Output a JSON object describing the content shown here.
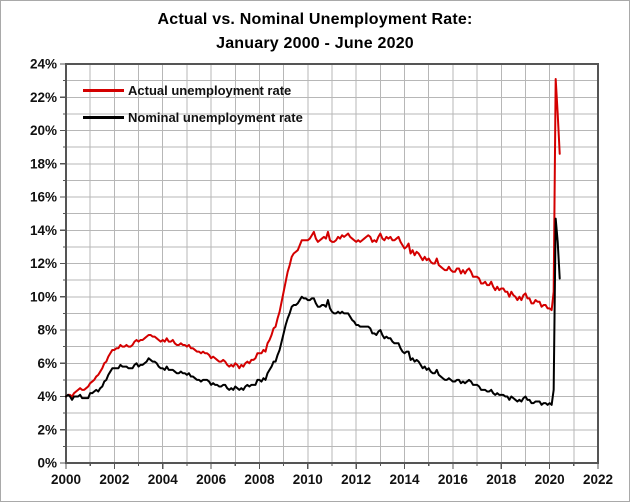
{
  "figure": {
    "title_line1": "Actual vs. Nominal Unemployment Rate:",
    "title_line2": "January 2000 - June 2020"
  },
  "legend": {
    "items": [
      {
        "label": "Actual unemployment rate",
        "color": "#d40000"
      },
      {
        "label": "Nominal unemployment rate",
        "color": "#000000"
      }
    ]
  },
  "colors": {
    "grid": "#b7b7b7",
    "axis": "#555555",
    "text": "#111111",
    "background": "#ffffff",
    "frame_border": "#a9a9a9"
  },
  "chart_data": {
    "type": "line",
    "title": "Actual vs. Nominal Unemployment Rate:",
    "subtitle": "January 2000 - June 2020",
    "x_unit": "monthly",
    "x_start": "2000-01",
    "x_end": "2020-06",
    "grid": true,
    "legend_position": "top-left-inside",
    "x_axis": {
      "min": 2000,
      "max": 2022,
      "tick_step_years": 2,
      "minor_grid_step_years": 1,
      "tick_labels": [
        "2000",
        "2002",
        "2004",
        "2006",
        "2008",
        "2010",
        "2012",
        "2014",
        "2016",
        "2018",
        "2020",
        "2022"
      ]
    },
    "y_axis": {
      "min": 0,
      "max": 24,
      "tick_step": 2,
      "minor_grid_step": 1,
      "format": "percent",
      "tick_labels": [
        "0%",
        "2%",
        "4%",
        "6%",
        "8%",
        "10%",
        "12%",
        "14%",
        "16%",
        "18%",
        "20%",
        "22%",
        "24%"
      ]
    },
    "series": [
      {
        "name": "Actual unemployment rate",
        "color": "#d40000",
        "values": [
          4.0,
          4.1,
          4.1,
          4.0,
          4.2,
          4.3,
          4.4,
          4.5,
          4.4,
          4.4,
          4.5,
          4.6,
          4.8,
          4.9,
          5.0,
          5.2,
          5.3,
          5.5,
          5.7,
          6.0,
          6.1,
          6.4,
          6.6,
          6.8,
          6.8,
          6.9,
          6.9,
          7.1,
          7.0,
          7.0,
          7.1,
          7.0,
          7.0,
          7.1,
          7.3,
          7.4,
          7.3,
          7.4,
          7.4,
          7.5,
          7.6,
          7.7,
          7.7,
          7.6,
          7.6,
          7.5,
          7.4,
          7.3,
          7.4,
          7.3,
          7.5,
          7.3,
          7.3,
          7.4,
          7.2,
          7.1,
          7.1,
          7.2,
          7.1,
          7.1,
          7.0,
          7.1,
          6.9,
          6.9,
          6.8,
          6.7,
          6.7,
          6.6,
          6.7,
          6.6,
          6.6,
          6.5,
          6.3,
          6.4,
          6.3,
          6.2,
          6.1,
          6.1,
          6.2,
          6.1,
          5.9,
          5.8,
          5.9,
          5.8,
          6.0,
          5.9,
          5.7,
          5.9,
          5.8,
          6.0,
          6.1,
          6.0,
          6.2,
          6.2,
          6.3,
          6.6,
          6.6,
          6.6,
          6.8,
          6.7,
          7.2,
          7.4,
          7.7,
          8.1,
          8.2,
          8.7,
          9.1,
          9.7,
          10.3,
          10.9,
          11.5,
          11.9,
          12.4,
          12.6,
          12.7,
          12.8,
          13.1,
          13.4,
          13.4,
          13.4,
          13.4,
          13.5,
          13.7,
          13.9,
          13.5,
          13.3,
          13.4,
          13.5,
          13.6,
          13.5,
          13.9,
          13.4,
          13.3,
          13.3,
          13.4,
          13.6,
          13.5,
          13.7,
          13.6,
          13.7,
          13.8,
          13.6,
          13.5,
          13.4,
          13.3,
          13.4,
          13.3,
          13.4,
          13.5,
          13.6,
          13.7,
          13.6,
          13.3,
          13.4,
          13.3,
          13.6,
          13.8,
          13.5,
          13.4,
          13.6,
          13.5,
          13.6,
          13.4,
          13.4,
          13.5,
          13.6,
          13.3,
          13.1,
          12.9,
          13.0,
          13.2,
          12.6,
          12.8,
          12.5,
          12.7,
          12.6,
          12.4,
          12.2,
          12.4,
          12.2,
          12.3,
          12.1,
          12.0,
          12.0,
          12.3,
          11.9,
          11.8,
          11.7,
          11.6,
          11.6,
          11.8,
          11.6,
          11.5,
          11.5,
          11.7,
          11.7,
          11.4,
          11.6,
          11.4,
          11.6,
          11.7,
          11.5,
          11.2,
          11.2,
          11.2,
          11.1,
          10.8,
          10.8,
          10.9,
          10.7,
          10.7,
          10.9,
          10.6,
          10.4,
          10.6,
          10.4,
          10.5,
          10.5,
          10.3,
          10.3,
          10.0,
          10.3,
          10.1,
          10.0,
          9.8,
          10.0,
          9.8,
          10.1,
          10.2,
          9.9,
          9.9,
          9.6,
          9.6,
          9.8,
          9.7,
          9.7,
          9.4,
          9.5,
          9.5,
          9.3,
          9.3,
          9.2,
          10.3,
          23.1,
          21.0,
          18.6
        ]
      },
      {
        "name": "Nominal unemployment rate",
        "color": "#000000",
        "values": [
          4.0,
          4.1,
          4.0,
          3.8,
          4.0,
          4.0,
          4.0,
          4.1,
          3.9,
          3.9,
          3.9,
          3.9,
          4.2,
          4.2,
          4.3,
          4.4,
          4.3,
          4.5,
          4.6,
          4.9,
          5.0,
          5.3,
          5.5,
          5.7,
          5.7,
          5.7,
          5.7,
          5.9,
          5.8,
          5.8,
          5.8,
          5.7,
          5.7,
          5.7,
          5.9,
          6.0,
          5.8,
          5.9,
          5.9,
          6.0,
          6.1,
          6.3,
          6.2,
          6.1,
          6.1,
          6.0,
          5.8,
          5.7,
          5.7,
          5.6,
          5.8,
          5.6,
          5.6,
          5.6,
          5.5,
          5.4,
          5.4,
          5.5,
          5.4,
          5.4,
          5.3,
          5.4,
          5.2,
          5.2,
          5.1,
          5.0,
          5.0,
          4.9,
          5.0,
          5.0,
          5.0,
          4.9,
          4.7,
          4.8,
          4.7,
          4.7,
          4.6,
          4.6,
          4.7,
          4.7,
          4.5,
          4.4,
          4.5,
          4.4,
          4.6,
          4.5,
          4.4,
          4.5,
          4.4,
          4.6,
          4.7,
          4.6,
          4.7,
          4.7,
          4.7,
          5.0,
          5.0,
          4.9,
          5.1,
          5.0,
          5.4,
          5.6,
          5.8,
          6.1,
          6.1,
          6.5,
          6.8,
          7.3,
          7.8,
          8.3,
          8.7,
          9.0,
          9.4,
          9.5,
          9.5,
          9.6,
          9.8,
          10.0,
          9.9,
          9.9,
          9.8,
          9.8,
          9.9,
          9.9,
          9.6,
          9.4,
          9.4,
          9.5,
          9.5,
          9.4,
          9.8,
          9.3,
          9.1,
          9.0,
          9.0,
          9.1,
          9.0,
          9.1,
          9.0,
          9.0,
          9.0,
          8.8,
          8.6,
          8.5,
          8.3,
          8.3,
          8.2,
          8.2,
          8.2,
          8.2,
          8.2,
          8.1,
          7.8,
          7.8,
          7.7,
          7.9,
          8.0,
          7.7,
          7.5,
          7.6,
          7.5,
          7.5,
          7.3,
          7.2,
          7.2,
          7.2,
          6.9,
          6.7,
          6.6,
          6.7,
          6.7,
          6.2,
          6.3,
          6.1,
          6.2,
          6.1,
          5.9,
          5.7,
          5.8,
          5.6,
          5.7,
          5.5,
          5.4,
          5.4,
          5.6,
          5.3,
          5.2,
          5.1,
          5.0,
          5.0,
          5.1,
          5.0,
          4.9,
          4.9,
          5.0,
          5.0,
          4.8,
          4.9,
          4.8,
          4.9,
          5.0,
          4.9,
          4.7,
          4.7,
          4.7,
          4.6,
          4.4,
          4.4,
          4.4,
          4.3,
          4.3,
          4.4,
          4.2,
          4.1,
          4.2,
          4.1,
          4.1,
          4.1,
          4.0,
          4.0,
          3.8,
          4.0,
          3.9,
          3.8,
          3.7,
          3.8,
          3.7,
          3.9,
          4.0,
          3.8,
          3.8,
          3.6,
          3.6,
          3.7,
          3.7,
          3.7,
          3.5,
          3.6,
          3.6,
          3.5,
          3.6,
          3.5,
          4.4,
          14.7,
          13.3,
          11.1
        ]
      }
    ]
  }
}
